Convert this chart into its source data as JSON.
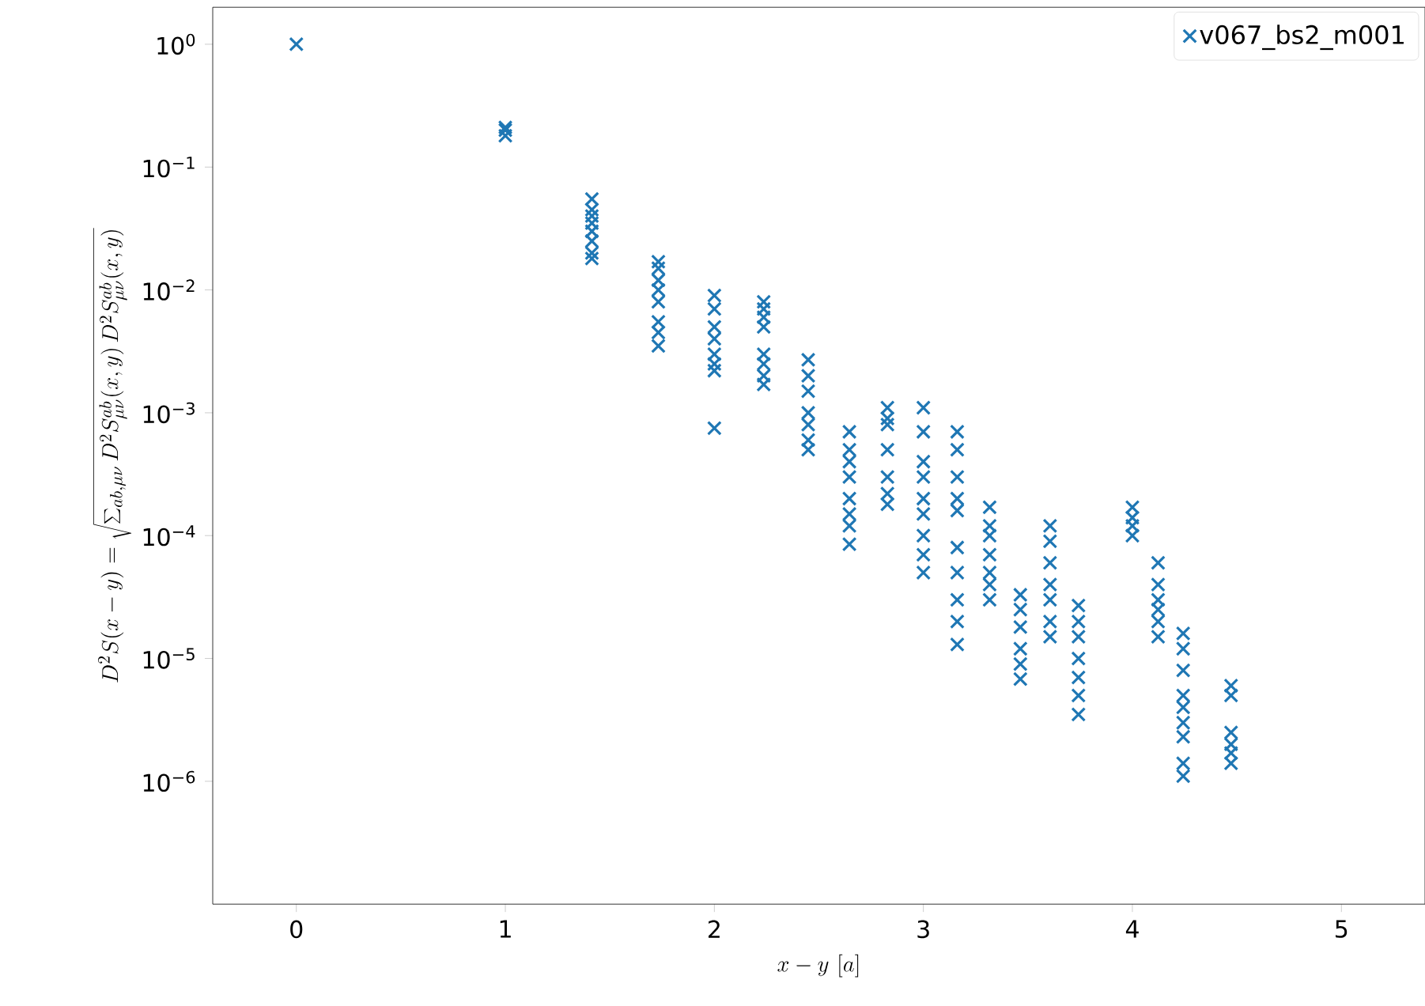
{
  "chart_data": {
    "type": "scatter",
    "xlabel": "x-y\\ [a]",
    "ylabel": "D^2S(x-y)=\\sqrt{\\sum_{ab,\\mu\\nu} D^2S^{ab}_{\\mu\\nu}(x,y)\\,D^2S^{ab}_{\\mu\\nu}(x,y)}",
    "log": "y",
    "marker": "cross",
    "legend": "top right",
    "xlim": [
      -0.4,
      5.4
    ],
    "ylim": [
      1e-07,
      2
    ],
    "xticks": [
      0,
      1,
      2,
      3,
      4,
      5
    ],
    "yticks": [
      {
        "value": 1,
        "label": "10$^{0}$"
      },
      {
        "value": 0.1,
        "label": "10$^{−1}$"
      },
      {
        "value": 0.01,
        "label": "10$^{−2}$"
      },
      {
        "value": 0.001,
        "label": "10$^{−3}$"
      },
      {
        "value": 0.0001,
        "label": "10$^{−4}$"
      },
      {
        "value": 1e-05,
        "label": "10$^{−5}$"
      },
      {
        "value": 1e-06,
        "label": "10$^{−6}$"
      }
    ],
    "series": [
      {
        "name": "v067_bs2_m001",
        "color": "#1f77b4",
        "x": [
          0,
          1,
          1,
          1,
          1.414,
          1.414,
          1.414,
          1.414,
          1.414,
          1.414,
          1.414,
          1.414,
          1.732,
          1.732,
          1.732,
          1.732,
          1.732,
          1.732,
          1.732,
          1.732,
          2,
          2,
          2,
          2,
          2,
          2,
          2,
          2,
          2.236,
          2.236,
          2.236,
          2.236,
          2.236,
          2.236,
          2.236,
          2.236,
          2.449,
          2.449,
          2.449,
          2.449,
          2.449,
          2.449,
          2.449,
          2.646,
          2.646,
          2.646,
          2.646,
          2.646,
          2.646,
          2.646,
          2.646,
          2.828,
          2.828,
          2.828,
          2.828,
          2.828,
          2.828,
          2.828,
          3,
          3,
          3,
          3,
          3,
          3,
          3,
          3,
          3,
          3.162,
          3.162,
          3.162,
          3.162,
          3.162,
          3.162,
          3.162,
          3.162,
          3.162,
          3.162,
          3.317,
          3.317,
          3.317,
          3.317,
          3.317,
          3.317,
          3.317,
          3.464,
          3.464,
          3.464,
          3.464,
          3.464,
          3.464,
          3.606,
          3.606,
          3.606,
          3.606,
          3.606,
          3.606,
          3.606,
          3.742,
          3.742,
          3.742,
          3.742,
          3.742,
          3.742,
          3.742,
          4,
          4,
          4,
          4,
          4.123,
          4.123,
          4.123,
          4.123,
          4.123,
          4.123,
          4.243,
          4.243,
          4.243,
          4.243,
          4.243,
          4.243,
          4.243,
          4.243,
          4.243,
          4.472,
          4.472,
          4.472,
          4.472,
          4.472,
          4.472
        ],
        "values": [
          1.0,
          0.2,
          0.18,
          0.21,
          0.055,
          0.045,
          0.04,
          0.035,
          0.03,
          0.025,
          0.02,
          0.018,
          0.017,
          0.015,
          0.012,
          0.01,
          0.008,
          0.0055,
          0.0045,
          0.0035,
          0.009,
          0.007,
          0.005,
          0.004,
          0.003,
          0.0025,
          0.0022,
          0.00075,
          0.008,
          0.007,
          0.006,
          0.005,
          0.003,
          0.0025,
          0.002,
          0.0017,
          0.0027,
          0.002,
          0.0015,
          0.001,
          0.0008,
          0.0006,
          0.0005,
          0.0007,
          0.0005,
          0.0004,
          0.0003,
          0.0002,
          0.00015,
          0.00012,
          8.5e-05,
          0.0011,
          0.0009,
          0.0008,
          0.0005,
          0.0003,
          0.00022,
          0.00018,
          0.0011,
          0.0007,
          0.0004,
          0.0003,
          0.0002,
          0.00015,
          0.0001,
          7e-05,
          5e-05,
          0.0007,
          0.0005,
          0.0003,
          0.0002,
          0.00016,
          8e-05,
          5e-05,
          3e-05,
          2e-05,
          1.3e-05,
          0.00017,
          0.00012,
          0.0001,
          7e-05,
          5e-05,
          4e-05,
          3e-05,
          3.3e-05,
          2.5e-05,
          1.8e-05,
          1.2e-05,
          9e-06,
          6.8e-06,
          0.00012,
          9e-05,
          6e-05,
          4e-05,
          3e-05,
          2e-05,
          1.5e-05,
          2.7e-05,
          2e-05,
          1.5e-05,
          1e-05,
          7e-06,
          5e-06,
          3.5e-06,
          0.00017,
          0.00014,
          0.00012,
          0.0001,
          6e-05,
          4e-05,
          3e-05,
          2.5e-05,
          2e-05,
          1.5e-05,
          1.6e-05,
          1.2e-05,
          8e-06,
          5e-06,
          4e-06,
          3e-06,
          2.3e-06,
          1.4e-06,
          1.1e-06,
          6e-06,
          5e-06,
          2.5e-06,
          2e-06,
          1.7e-06,
          1.4e-06
        ]
      }
    ]
  }
}
